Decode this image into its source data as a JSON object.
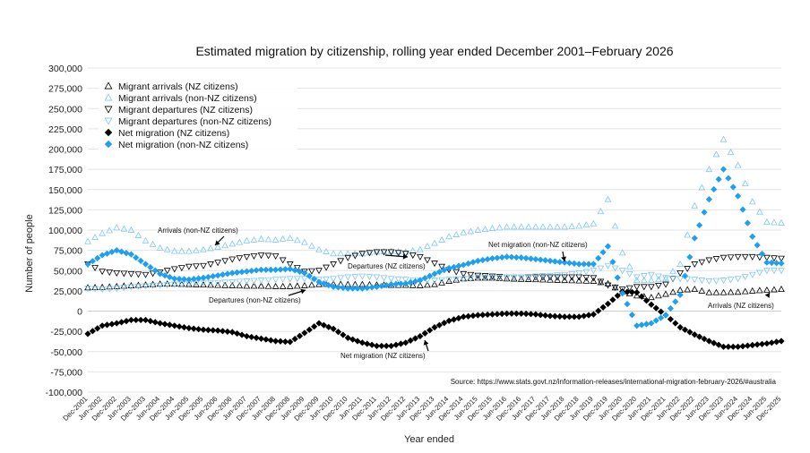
{
  "chart_data": {
    "type": "scatter",
    "title": "Estimated migration by citizenship, rolling year ended December 2001–February 2026",
    "xlabel": "Year ended",
    "ylabel": "Number of people",
    "ylim": [
      -100000,
      300000
    ],
    "y_ticks": [
      "300,000",
      "275,000",
      "250,000",
      "225,000",
      "200,000",
      "175,000",
      "150,000",
      "125,000",
      "100,000",
      "75,000",
      "50,000",
      "25,000",
      "0",
      "-25,000",
      "-50,000",
      "-75,000",
      "-100,000"
    ],
    "x_ticks": [
      "Dec-2001",
      "Jun-2002",
      "Dec-2002",
      "Jun-2003",
      "Dec-2003",
      "Jun-2004",
      "Dec-2004",
      "Jun-2005",
      "Dec-2005",
      "Jun-2006",
      "Dec-2006",
      "Jun-2007",
      "Dec-2007",
      "Jun-2008",
      "Dec-2008",
      "Jun-2009",
      "Dec-2009",
      "Jun-2010",
      "Dec-2010",
      "Jun-2011",
      "Dec-2011",
      "Jun-2012",
      "Dec-2012",
      "Jun-2013",
      "Dec-2013",
      "Jun-2014",
      "Dec-2014",
      "Jun-2015",
      "Dec-2015",
      "Jun-2016",
      "Dec-2016",
      "Jun-2017",
      "Dec-2017",
      "Jun-2018",
      "Dec-2018",
      "Jun-2019",
      "Dec-2019",
      "Jun-2020",
      "Dec-2020",
      "Jun-2021",
      "Dec-2021",
      "Jun-2022",
      "Dec-2022",
      "Jun-2023",
      "Dec-2023",
      "Jun-2024",
      "Dec-2024",
      "Jun-2025",
      "Dec-2025"
    ],
    "grid": true,
    "legend_position": "top-left",
    "colors": {
      "nz": "#000000",
      "nonnz": "#1ea0f0",
      "nonnz_light": "#7fc8f5"
    },
    "series": [
      {
        "name": "Migrant arrivals (NZ citizens)",
        "marker": "triangle-up-open",
        "color": "#000000",
        "values": [
          29000,
          29500,
          30500,
          31500,
          32500,
          33500,
          33500,
          33000,
          32500,
          32000,
          31500,
          31000,
          31000,
          30500,
          30500,
          31500,
          33000,
          33500,
          33000,
          33000,
          32500,
          32000,
          32000,
          31500,
          33000,
          37000,
          40000,
          41000,
          41000,
          40000,
          39500,
          39000,
          38500,
          38000,
          37500,
          37000,
          34000,
          24000,
          19000,
          17000,
          21000,
          26000,
          27000,
          23000,
          23000,
          23500,
          25000,
          26000,
          27000
        ]
      },
      {
        "name": "Migrant arrivals (non-NZ citizens)",
        "marker": "triangle-up-open",
        "color": "#7fc8f5",
        "values": [
          86000,
          96000,
          103000,
          100000,
          87000,
          78000,
          74000,
          74000,
          76000,
          79000,
          83000,
          87000,
          89000,
          88000,
          90000,
          85000,
          76000,
          71000,
          71000,
          71000,
          73000,
          74000,
          73000,
          76000,
          84000,
          92000,
          97000,
          100000,
          102000,
          104000,
          104000,
          104000,
          104000,
          104000,
          105000,
          108000,
          138000,
          72000,
          38000,
          38000,
          40000,
          58000,
          130000,
          175000,
          212000,
          180000,
          135000,
          110000,
          109000
        ]
      },
      {
        "name": "Migrant departures (NZ citizens)",
        "marker": "triangle-down-open",
        "color": "#000000",
        "values": [
          58000,
          49000,
          47000,
          46000,
          45000,
          48000,
          52000,
          55000,
          56000,
          60000,
          64000,
          67000,
          69000,
          68000,
          58000,
          49000,
          50000,
          58000,
          66000,
          71000,
          73000,
          73000,
          71000,
          67000,
          59000,
          51000,
          46000,
          44000,
          43000,
          42000,
          42000,
          42000,
          42000,
          42000,
          42000,
          41000,
          32000,
          27000,
          30000,
          30000,
          33000,
          47000,
          58000,
          63000,
          66000,
          67000,
          67000,
          66000,
          65000
        ]
      },
      {
        "name": "Migrant departures (non-NZ citizens)",
        "marker": "triangle-down-open",
        "color": "#7fc8f5",
        "values": [
          28000,
          27000,
          28000,
          30000,
          31000,
          32000,
          33000,
          34000,
          35000,
          35000,
          36000,
          37000,
          38000,
          39000,
          40000,
          40000,
          39000,
          40000,
          42000,
          43000,
          42000,
          40000,
          39000,
          38000,
          38000,
          39000,
          40000,
          41000,
          41000,
          42000,
          42000,
          43000,
          44000,
          45000,
          47000,
          50000,
          56000,
          50000,
          42000,
          45000,
          41000,
          40000,
          39000,
          37000,
          38000,
          40000,
          45000,
          50000,
          50000
        ]
      },
      {
        "name": "Net migration (NZ citizens)",
        "marker": "diamond-filled",
        "color": "#000000",
        "values": [
          -28000,
          -18000,
          -15000,
          -11000,
          -11000,
          -15000,
          -18000,
          -21000,
          -23000,
          -24000,
          -26000,
          -31000,
          -34000,
          -37000,
          -38000,
          -27000,
          -15000,
          -22000,
          -33000,
          -39000,
          -43000,
          -43000,
          -39000,
          -31000,
          -20000,
          -12000,
          -7000,
          -5000,
          -4000,
          -3000,
          -3000,
          -4000,
          -6000,
          -7000,
          -7000,
          -4000,
          9000,
          24000,
          23000,
          8000,
          -5000,
          -20000,
          -29000,
          -37000,
          -44000,
          -44000,
          -42000,
          -40000,
          -37000
        ]
      },
      {
        "name": "Net migration (non-NZ citizens)",
        "marker": "diamond-filled",
        "color": "#1ea0f0",
        "values": [
          58000,
          69000,
          75000,
          70000,
          58000,
          46000,
          40000,
          39000,
          41000,
          44000,
          47000,
          49000,
          51000,
          51000,
          52000,
          47000,
          36000,
          30000,
          28000,
          28000,
          30000,
          33000,
          34000,
          38000,
          46000,
          53000,
          57000,
          62000,
          65000,
          67000,
          66000,
          64000,
          62000,
          60000,
          58000,
          58000,
          80000,
          22000,
          -18000,
          -15000,
          -5000,
          20000,
          90000,
          138000,
          175000,
          142000,
          92000,
          60000,
          59000
        ]
      }
    ],
    "annotations": [
      {
        "text": "Arrivals (non-NZ citizens)"
      },
      {
        "text": "Departures (NZ citizens)"
      },
      {
        "text": "Departures (non-NZ citizens)"
      },
      {
        "text": "Net migration (non-NZ citizens)"
      },
      {
        "text": "Arrivals (NZ citizens)"
      },
      {
        "text": "Net migration (NZ citizens)"
      }
    ],
    "source": "Source: https://www.stats.govt.nz/information-releases/international-migration-february-2026/#australia"
  }
}
